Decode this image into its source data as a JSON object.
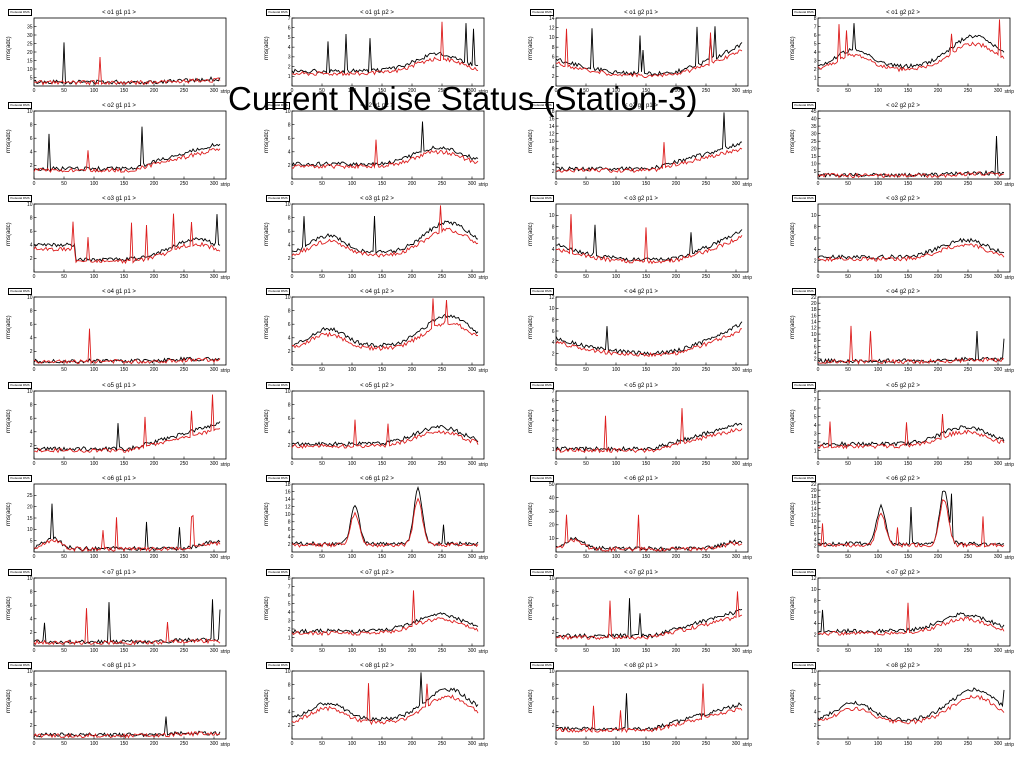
{
  "slide_title": "Current Noise Status (Station-3)",
  "ylabel": "rms(adc)",
  "xlabel": "strip",
  "hist_box": "Pedestal RMS",
  "colors": {
    "series1": "#000000",
    "series2": "#dd1f1f"
  },
  "chart_data": [
    {
      "type": "line",
      "title": "< o1 g1 p1 >",
      "xlim": [
        0,
        320
      ],
      "ylim": [
        0,
        40
      ],
      "yticks": [
        5,
        10,
        15,
        20,
        25,
        30,
        35
      ],
      "xticks": [
        0,
        50,
        100,
        150,
        200,
        250,
        300
      ],
      "shape": "low_rise",
      "amp": 4
    },
    {
      "type": "line",
      "title": "< o1 g1 p2 >",
      "xlim": [
        0,
        320
      ],
      "ylim": [
        0,
        7
      ],
      "yticks": [
        1,
        2,
        3,
        4,
        5,
        6,
        7
      ],
      "xticks": [
        0,
        50,
        100,
        150,
        200,
        250,
        300
      ],
      "shape": "late_bump",
      "amp": 4
    },
    {
      "type": "line",
      "title": "< o1 g2 p1 >",
      "xlim": [
        0,
        320
      ],
      "ylim": [
        0,
        14
      ],
      "yticks": [
        2,
        4,
        6,
        8,
        10,
        12,
        14
      ],
      "xticks": [
        0,
        50,
        100,
        150,
        200,
        250,
        300
      ],
      "shape": "u_rise",
      "amp": 8
    },
    {
      "type": "line",
      "title": "< o1 g2 p2 >",
      "xlim": [
        0,
        320
      ],
      "ylim": [
        0,
        8
      ],
      "yticks": [
        1,
        2,
        3,
        4,
        5,
        6,
        7,
        8
      ],
      "xticks": [
        0,
        50,
        100,
        150,
        200,
        250,
        300
      ],
      "shape": "double",
      "amp": 7
    },
    {
      "type": "line",
      "title": "< o2 g1 p1 >",
      "xlim": [
        0,
        320
      ],
      "ylim": [
        0,
        10
      ],
      "yticks": [
        2,
        4,
        6,
        8,
        10
      ],
      "xticks": [
        0,
        50,
        100,
        150,
        200,
        250,
        300
      ],
      "shape": "late_rise",
      "amp": 6
    },
    {
      "type": "line",
      "title": "< o2 g1 p2 >",
      "xlim": [
        0,
        320
      ],
      "ylim": [
        0,
        10
      ],
      "yticks": [
        2,
        4,
        6,
        8,
        10
      ],
      "xticks": [
        0,
        50,
        100,
        150,
        200,
        250,
        300
      ],
      "shape": "late_bump",
      "amp": 4
    },
    {
      "type": "line",
      "title": "< o2 g2 p1 >",
      "xlim": [
        0,
        320
      ],
      "ylim": [
        0,
        18
      ],
      "yticks": [
        2,
        4,
        6,
        8,
        10,
        12,
        14,
        16,
        18
      ],
      "xticks": [
        0,
        50,
        100,
        150,
        200,
        250,
        300
      ],
      "shape": "late_rise",
      "amp": 10
    },
    {
      "type": "line",
      "title": "< o2 g2 p2 >",
      "xlim": [
        0,
        320
      ],
      "ylim": [
        0,
        45
      ],
      "yticks": [
        5,
        10,
        15,
        20,
        25,
        30,
        35,
        40,
        45
      ],
      "xticks": [
        0,
        50,
        100,
        150,
        200,
        250,
        300
      ],
      "shape": "flat",
      "amp": 5
    },
    {
      "type": "line",
      "title": "< o3 g1 p1 >",
      "xlim": [
        0,
        320
      ],
      "ylim": [
        0,
        10
      ],
      "yticks": [
        2,
        4,
        6,
        8,
        10
      ],
      "xticks": [
        0,
        50,
        100,
        150,
        200,
        250,
        300
      ],
      "shape": "step_high",
      "amp": 6
    },
    {
      "type": "line",
      "title": "< o3 g1 p2 >",
      "xlim": [
        0,
        320
      ],
      "ylim": [
        0,
        10
      ],
      "yticks": [
        2,
        4,
        6,
        8,
        10
      ],
      "xticks": [
        0,
        50,
        100,
        150,
        200,
        250,
        300
      ],
      "shape": "double",
      "amp": 5
    },
    {
      "type": "line",
      "title": "< o3 g2 p1 >",
      "xlim": [
        0,
        320
      ],
      "ylim": [
        0,
        12
      ],
      "yticks": [
        2,
        4,
        6,
        8,
        10
      ],
      "xticks": [
        0,
        50,
        100,
        150,
        200,
        250,
        300
      ],
      "shape": "u_rise",
      "amp": 5
    },
    {
      "type": "line",
      "title": "< o3 g2 p2 >",
      "xlim": [
        0,
        320
      ],
      "ylim": [
        0,
        12
      ],
      "yticks": [
        2,
        4,
        6,
        8,
        10
      ],
      "xticks": [
        0,
        50,
        100,
        150,
        200,
        250,
        300
      ],
      "shape": "late_bump",
      "amp": 5
    },
    {
      "type": "line",
      "title": "< o4 g1 p1 >",
      "xlim": [
        0,
        320
      ],
      "ylim": [
        0,
        10
      ],
      "yticks": [
        2,
        4,
        6,
        8,
        10
      ],
      "xticks": [
        0,
        50,
        100,
        150,
        200,
        250,
        300
      ],
      "shape": "flat",
      "amp": 3
    },
    {
      "type": "line",
      "title": "< o4 g1 p2 >",
      "xlim": [
        0,
        320
      ],
      "ylim": [
        0,
        10
      ],
      "yticks": [
        2,
        4,
        6,
        8,
        10
      ],
      "xticks": [
        0,
        50,
        100,
        150,
        200,
        250,
        300
      ],
      "shape": "double",
      "amp": 3
    },
    {
      "type": "line",
      "title": "< o4 g2 p1 >",
      "xlim": [
        0,
        320
      ],
      "ylim": [
        0,
        12
      ],
      "yticks": [
        2,
        4,
        6,
        8,
        10,
        12
      ],
      "xticks": [
        0,
        50,
        100,
        150,
        200,
        250,
        300
      ],
      "shape": "u_rise",
      "amp": 6
    },
    {
      "type": "line",
      "title": "< o4 g2 p2 >",
      "xlim": [
        0,
        320
      ],
      "ylim": [
        0,
        22
      ],
      "yticks": [
        2,
        4,
        6,
        8,
        10,
        12,
        14,
        16,
        18,
        20,
        22
      ],
      "xticks": [
        0,
        50,
        100,
        150,
        200,
        250,
        300
      ],
      "shape": "flat",
      "amp": 4
    },
    {
      "type": "line",
      "title": "< o5 g1 p1 >",
      "xlim": [
        0,
        320
      ],
      "ylim": [
        0,
        10
      ],
      "yticks": [
        2,
        4,
        6,
        8,
        10
      ],
      "xticks": [
        0,
        50,
        100,
        150,
        200,
        250,
        300
      ],
      "shape": "late_rise",
      "amp": 5
    },
    {
      "type": "line",
      "title": "< o5 g1 p2 >",
      "xlim": [
        0,
        320
      ],
      "ylim": [
        0,
        10
      ],
      "yticks": [
        2,
        4,
        6,
        8,
        10
      ],
      "xticks": [
        0,
        50,
        100,
        150,
        200,
        250,
        300
      ],
      "shape": "late_bump",
      "amp": 4
    },
    {
      "type": "line",
      "title": "< o5 g2 p1 >",
      "xlim": [
        0,
        320
      ],
      "ylim": [
        0,
        7
      ],
      "yticks": [
        1,
        2,
        3,
        4,
        5,
        6,
        7
      ],
      "xticks": [
        0,
        50,
        100,
        150,
        200,
        250,
        300
      ],
      "shape": "late_rise",
      "amp": 6
    },
    {
      "type": "line",
      "title": "< o5 g2 p2 >",
      "xlim": [
        0,
        320
      ],
      "ylim": [
        0,
        8
      ],
      "yticks": [
        1,
        2,
        3,
        4,
        5,
        6,
        7,
        8
      ],
      "xticks": [
        0,
        50,
        100,
        150,
        200,
        250,
        300
      ],
      "shape": "late_bump",
      "amp": 5
    },
    {
      "type": "line",
      "title": "< o6 g1 p1 >",
      "xlim": [
        0,
        320
      ],
      "ylim": [
        0,
        30
      ],
      "yticks": [
        5,
        10,
        15,
        20,
        25
      ],
      "xticks": [
        0,
        50,
        100,
        150,
        200,
        250,
        300
      ],
      "shape": "spiky_early",
      "amp": 15
    },
    {
      "type": "line",
      "title": "< o6 g1 p2 >",
      "xlim": [
        0,
        320
      ],
      "ylim": [
        0,
        18
      ],
      "yticks": [
        2,
        4,
        6,
        8,
        10,
        12,
        14,
        16,
        18
      ],
      "xticks": [
        0,
        50,
        100,
        150,
        200,
        250,
        300
      ],
      "shape": "two_peaks",
      "amp": 14
    },
    {
      "type": "line",
      "title": "< o6 g2 p1 >",
      "xlim": [
        0,
        320
      ],
      "ylim": [
        0,
        50
      ],
      "yticks": [
        10,
        20,
        30,
        40,
        50
      ],
      "xticks": [
        0,
        50,
        100,
        150,
        200,
        250,
        300
      ],
      "shape": "spiky_early",
      "amp": 35
    },
    {
      "type": "line",
      "title": "< o6 g2 p2 >",
      "xlim": [
        0,
        320
      ],
      "ylim": [
        0,
        22
      ],
      "yticks": [
        2,
        4,
        6,
        8,
        10,
        12,
        14,
        16,
        18,
        20,
        22
      ],
      "xticks": [
        0,
        50,
        100,
        150,
        200,
        250,
        300
      ],
      "shape": "two_peaks",
      "amp": 18
    },
    {
      "type": "line",
      "title": "< o7 g1 p1 >",
      "xlim": [
        0,
        320
      ],
      "ylim": [
        0,
        10
      ],
      "yticks": [
        2,
        4,
        6,
        8,
        10
      ],
      "xticks": [
        0,
        50,
        100,
        150,
        200,
        250,
        300
      ],
      "shape": "flat",
      "amp": 3
    },
    {
      "type": "line",
      "title": "< o7 g1 p2 >",
      "xlim": [
        0,
        320
      ],
      "ylim": [
        0,
        8
      ],
      "yticks": [
        1,
        2,
        3,
        4,
        5,
        6,
        7,
        8
      ],
      "xticks": [
        0,
        50,
        100,
        150,
        200,
        250,
        300
      ],
      "shape": "late_bump",
      "amp": 3
    },
    {
      "type": "line",
      "title": "< o7 g2 p1 >",
      "xlim": [
        0,
        320
      ],
      "ylim": [
        0,
        10
      ],
      "yticks": [
        2,
        4,
        6,
        8,
        10
      ],
      "xticks": [
        0,
        50,
        100,
        150,
        200,
        250,
        300
      ],
      "shape": "late_rise",
      "amp": 4
    },
    {
      "type": "line",
      "title": "< o7 g2 p2 >",
      "xlim": [
        0,
        320
      ],
      "ylim": [
        0,
        12
      ],
      "yticks": [
        2,
        4,
        6,
        8,
        10,
        12
      ],
      "xticks": [
        0,
        50,
        100,
        150,
        200,
        250,
        300
      ],
      "shape": "late_bump",
      "amp": 3
    },
    {
      "type": "line",
      "title": "< o8 g1 p1 >",
      "xlim": [
        0,
        320
      ],
      "ylim": [
        0,
        10
      ],
      "yticks": [
        2,
        4,
        6,
        8,
        10
      ],
      "xticks": [
        0,
        50,
        100,
        150,
        200,
        250,
        300
      ],
      "shape": "flat",
      "amp": 3
    },
    {
      "type": "line",
      "title": "< o8 g1 p2 >",
      "xlim": [
        0,
        320
      ],
      "ylim": [
        0,
        10
      ],
      "yticks": [
        2,
        4,
        6,
        8,
        10
      ],
      "xticks": [
        0,
        50,
        100,
        150,
        200,
        250,
        300
      ],
      "shape": "double",
      "amp": 3
    },
    {
      "type": "line",
      "title": "< o8 g2 p1 >",
      "xlim": [
        0,
        320
      ],
      "ylim": [
        0,
        10
      ],
      "yticks": [
        2,
        4,
        6,
        8,
        10
      ],
      "xticks": [
        0,
        50,
        100,
        150,
        200,
        250,
        300
      ],
      "shape": "late_rise",
      "amp": 5
    },
    {
      "type": "line",
      "title": "< o8 g2 p2 >",
      "xlim": [
        0,
        320
      ],
      "ylim": [
        0,
        10
      ],
      "yticks": [
        2,
        4,
        6,
        8,
        10
      ],
      "xticks": [
        0,
        50,
        100,
        150,
        200,
        250,
        300
      ],
      "shape": "double",
      "amp": 4
    }
  ]
}
